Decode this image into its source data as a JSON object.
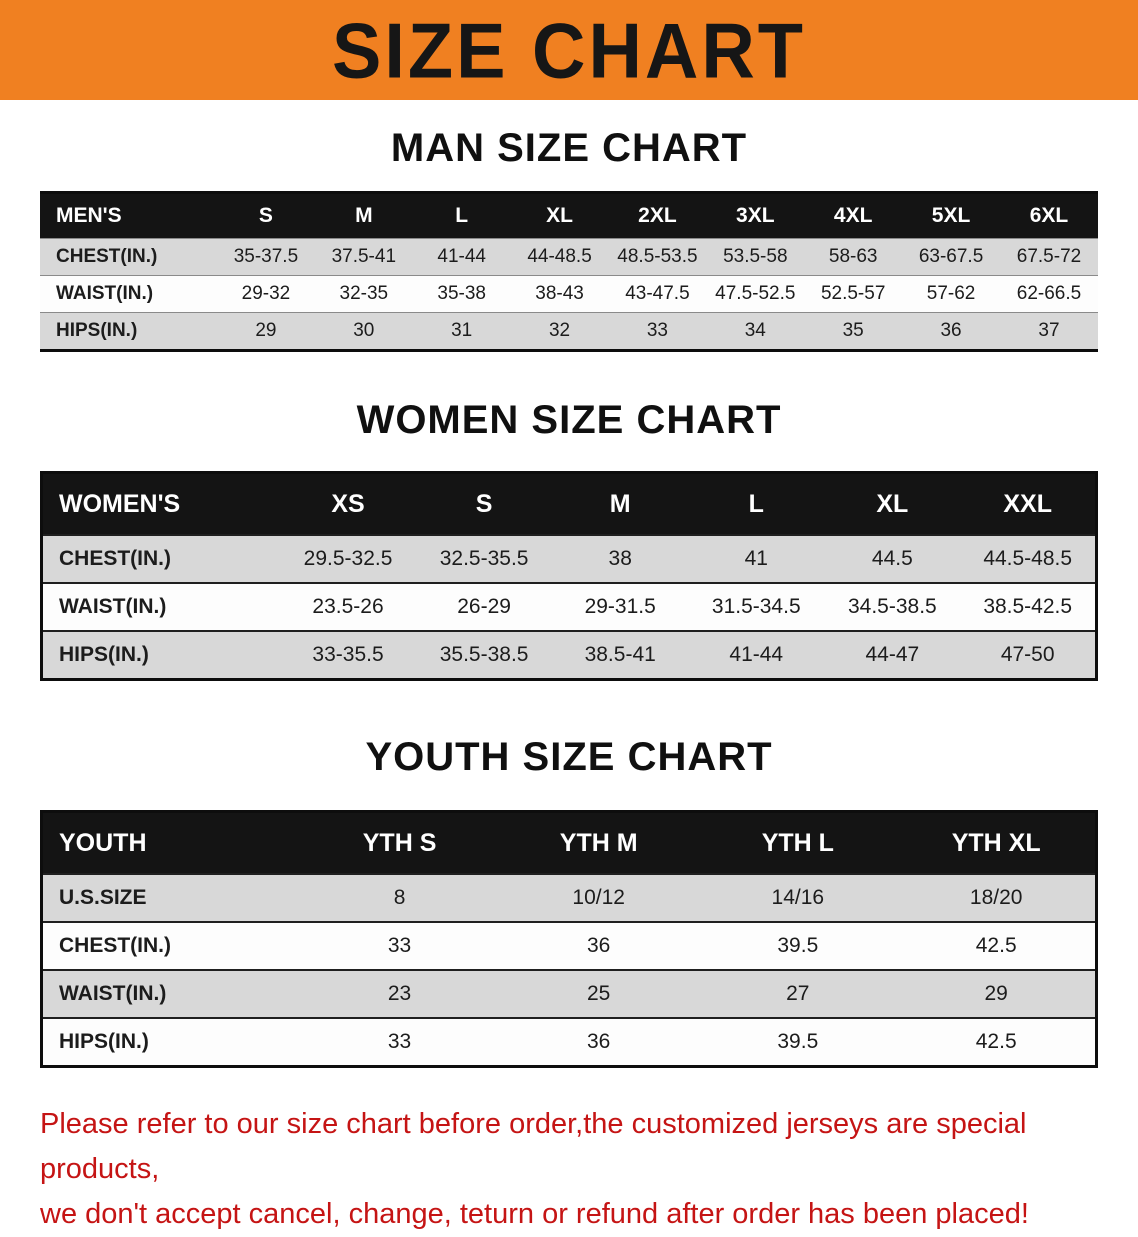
{
  "colors": {
    "banner_background": "#f08021",
    "banner_text": "#161616",
    "table_header_background": "#141414",
    "table_header_text": "#ffffff",
    "row_shade_gray": "#d8d8d8",
    "footer_text": "#c51414"
  },
  "banner": {
    "title": "SIZE CHART"
  },
  "men": {
    "section_title": "MAN SIZE CHART",
    "header": [
      "MEN'S",
      "S",
      "M",
      "L",
      "XL",
      "2XL",
      "3XL",
      "4XL",
      "5XL",
      "6XL"
    ],
    "rows": [
      [
        "CHEST(IN.)",
        "35-37.5",
        "37.5-41",
        "41-44",
        "44-48.5",
        "48.5-53.5",
        "53.5-58",
        "58-63",
        "63-67.5",
        "67.5-72"
      ],
      [
        "WAIST(IN.)",
        "29-32",
        "32-35",
        "35-38",
        "38-43",
        "43-47.5",
        "47.5-52.5",
        "52.5-57",
        "57-62",
        "62-66.5"
      ],
      [
        "HIPS(IN.)",
        "29",
        "30",
        "31",
        "32",
        "33",
        "34",
        "35",
        "36",
        "37"
      ]
    ]
  },
  "women": {
    "section_title": "WOMEN SIZE CHART",
    "header": [
      "WOMEN'S",
      "XS",
      "S",
      "M",
      "L",
      "XL",
      "XXL"
    ],
    "rows": [
      [
        "CHEST(IN.)",
        "29.5-32.5",
        "32.5-35.5",
        "38",
        "41",
        "44.5",
        "44.5-48.5"
      ],
      [
        "WAIST(IN.)",
        "23.5-26",
        "26-29",
        "29-31.5",
        "31.5-34.5",
        "34.5-38.5",
        "38.5-42.5"
      ],
      [
        "HIPS(IN.)",
        "33-35.5",
        "35.5-38.5",
        "38.5-41",
        "41-44",
        "44-47",
        "47-50"
      ]
    ]
  },
  "youth": {
    "section_title": "YOUTH SIZE CHART",
    "header": [
      "YOUTH",
      "YTH S",
      "YTH M",
      "YTH L",
      "YTH XL"
    ],
    "rows": [
      [
        "U.S.SIZE",
        "8",
        "10/12",
        "14/16",
        "18/20"
      ],
      [
        "CHEST(IN.)",
        "33",
        "36",
        "39.5",
        "42.5"
      ],
      [
        "WAIST(IN.)",
        "23",
        "25",
        "27",
        "29"
      ],
      [
        "HIPS(IN.)",
        "33",
        "36",
        "39.5",
        "42.5"
      ]
    ]
  },
  "footer": {
    "line1": "Please refer to our size chart before order,the customized jerseys are special products,",
    "line2": "we don't accept cancel, change, teturn or refund after order has been placed!"
  }
}
